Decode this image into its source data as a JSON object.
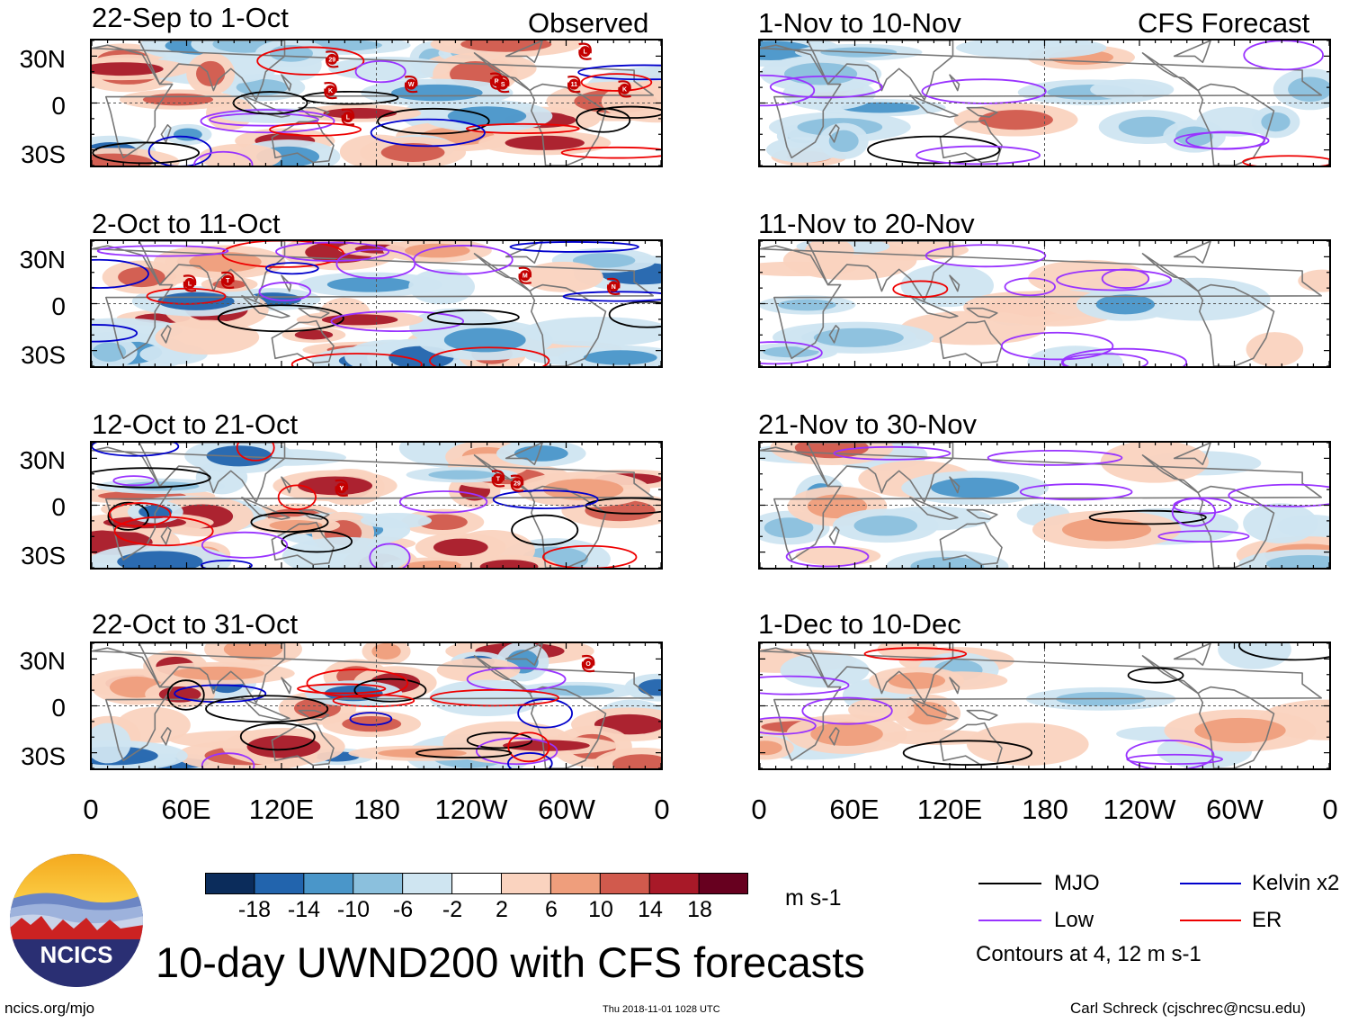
{
  "chart_data": {
    "type": "heatmap",
    "title": "10-day UWND200 with CFS forecasts",
    "variable": "UWND200",
    "units": "m s-1",
    "column_headers": {
      "observed": "Observed",
      "forecast": "CFS Forecast"
    },
    "x_ticks": [
      "0",
      "60E",
      "120E",
      "180",
      "120W",
      "60W",
      "0"
    ],
    "y_ticks": [
      "30N",
      "0",
      "30S"
    ],
    "xlim_deg_east": [
      0,
      360
    ],
    "ylim_deg": [
      -40,
      40
    ],
    "observed_panels": [
      {
        "period": "22-Sep to 1-Oct",
        "storms": [
          {
            "label": "29",
            "lon": 152,
            "lat": 28
          },
          {
            "label": "K",
            "lon": 151,
            "lat": 8
          },
          {
            "label": "L",
            "lon": 162,
            "lat": -9
          },
          {
            "label": "W",
            "lon": 202,
            "lat": 12
          },
          {
            "label": "R",
            "lon": 256,
            "lat": 14
          },
          {
            "label": "S",
            "lon": 260,
            "lat": 12
          },
          {
            "label": "L",
            "lon": 312,
            "lat": 33
          },
          {
            "label": "11",
            "lon": 305,
            "lat": 12
          },
          {
            "label": "K",
            "lon": 337,
            "lat": 9
          }
        ]
      },
      {
        "period": "2-Oct to 11-Oct",
        "storms": [
          {
            "label": "L",
            "lon": 62,
            "lat": 13
          },
          {
            "label": "T",
            "lon": 86,
            "lat": 15
          },
          {
            "label": "M",
            "lon": 274,
            "lat": 18
          },
          {
            "label": "N",
            "lon": 330,
            "lat": 11
          }
        ]
      },
      {
        "period": "12-Oct to 21-Oct",
        "storms": [
          {
            "label": "Y",
            "lon": 158,
            "lat": 11
          },
          {
            "label": "T",
            "lon": 257,
            "lat": 17
          },
          {
            "label": "29",
            "lon": 269,
            "lat": 14
          }
        ]
      },
      {
        "period": "22-Oct to 31-Oct",
        "storms": [
          {
            "label": "O",
            "lon": 314,
            "lat": 27
          }
        ]
      }
    ],
    "forecast_panels": [
      {
        "period": "1-Nov to 10-Nov",
        "storms": []
      },
      {
        "period": "11-Nov to 20-Nov",
        "storms": []
      },
      {
        "period": "21-Nov to 30-Nov",
        "storms": []
      },
      {
        "period": "1-Dec to 10-Dec",
        "storms": []
      }
    ],
    "colorbar": {
      "boundaries": [
        "-18",
        "-14",
        "-10",
        "-6",
        "-2",
        "2",
        "6",
        "10",
        "14",
        "18"
      ],
      "colors": [
        "#0b2c5b",
        "#2264ad",
        "#4a96c9",
        "#8bc0dd",
        "#cfe5f1",
        "#ffffff",
        "#fad3bf",
        "#ef9e7c",
        "#d15a4d",
        "#a81928",
        "#67001f"
      ]
    },
    "contour_legend": [
      {
        "name": "MJO",
        "color": "#000000"
      },
      {
        "name": "Kelvin x2",
        "color": "#0000cc"
      },
      {
        "name": "Low",
        "color": "#9933ff"
      },
      {
        "name": "ER",
        "color": "#ee0000"
      }
    ],
    "contour_note": "Contours at 4, 12 m s-1"
  },
  "footer": {
    "logo_text": "NCICS",
    "url": "ncics.org/mjo",
    "timestamp": "Thu 2018-11-01 1028 UTC",
    "credit": "Carl Schreck (cjschrec@ncsu.edu)"
  }
}
